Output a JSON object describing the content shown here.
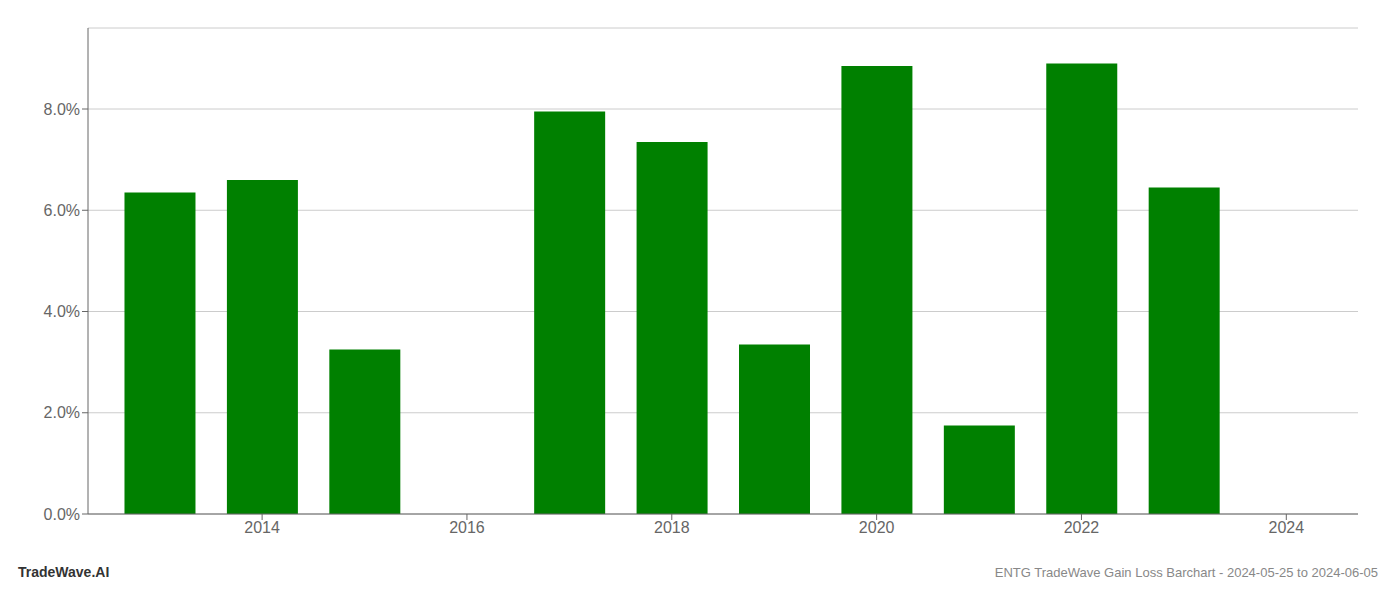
{
  "chart_data": {
    "type": "bar",
    "x": [
      2013,
      2014,
      2015,
      2017,
      2018,
      2019,
      2020,
      2021,
      2022,
      2023
    ],
    "values": [
      0.0635,
      0.066,
      0.0325,
      0.0795,
      0.0735,
      0.0335,
      0.0885,
      0.0175,
      0.089,
      0.0645
    ],
    "color": "#008000",
    "xlim": [
      2012.3,
      2024.7
    ],
    "xticks": [
      2014,
      2016,
      2018,
      2020,
      2022,
      2024
    ],
    "ylim": [
      0,
      0.096
    ],
    "yticks": [
      {
        "value": 0.0,
        "label": "0.0%"
      },
      {
        "value": 0.02,
        "label": "2.0%"
      },
      {
        "value": 0.04,
        "label": "4.0%"
      },
      {
        "value": 0.06,
        "label": "6.0%"
      },
      {
        "value": 0.08,
        "label": "8.0%"
      }
    ],
    "grid": true,
    "annotations": [
      "TradeWave.AI",
      "ENTG TradeWave Gain Loss Barchart - 2024-05-25 to 2024-06-05"
    ]
  }
}
